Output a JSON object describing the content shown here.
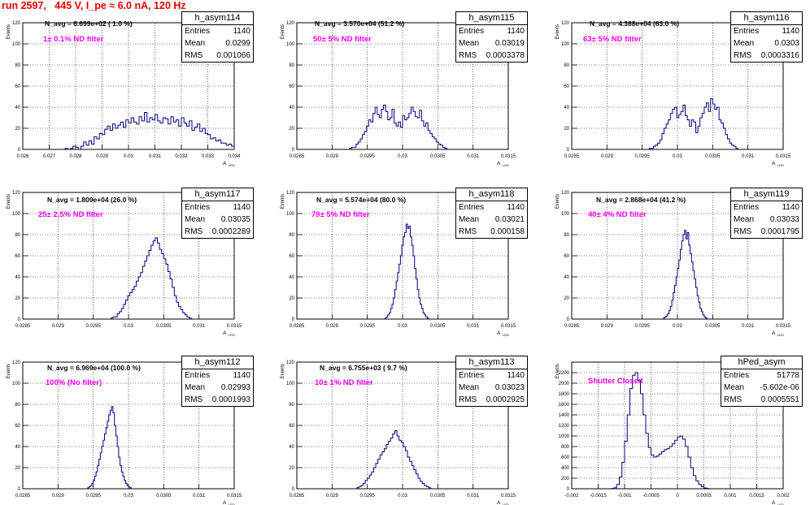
{
  "run_title": "run 2597,   445 V, I_pe ≈ 6.0 nA, 120 Hz",
  "y_axis_label": "Events",
  "x_axis_label": "A",
  "x_axis_sub": "LED",
  "stat_labels": {
    "entries": "Entries",
    "mean": "Mean",
    "rms": "RMS"
  },
  "line_color": "#000080",
  "filter_text_color": "#ff00ff",
  "chart_data": [
    {
      "type": "histogram",
      "name": "h_asym114",
      "navg": "N_avg = 6.699e+02 ( 1.0 %)",
      "filter": "1± 0.1% ND filter",
      "entries": "1140",
      "mean": "0.0299",
      "rms": "0.001066",
      "xlim": [
        0.026,
        0.034
      ],
      "ylim": [
        0,
        120
      ],
      "xticks": [
        "0.026",
        "0.027",
        "0.028",
        "0.029",
        "0.03",
        "0.031",
        "0.032",
        "0.033",
        "0.034"
      ],
      "yticks": [
        "0",
        "20",
        "40",
        "60",
        "80",
        "100",
        "120"
      ],
      "x_start": 0.0276,
      "bin_width": 0.0001,
      "values": [
        1,
        0,
        1,
        3,
        2,
        0,
        3,
        7,
        4,
        8,
        5,
        12,
        10,
        15,
        14,
        19,
        22,
        18,
        24,
        20,
        23,
        26,
        21,
        28,
        25,
        30,
        26,
        24,
        31,
        27,
        35,
        26,
        30,
        28,
        33,
        27,
        25,
        30,
        29,
        24,
        31,
        26,
        28,
        22,
        30,
        25,
        22,
        27,
        18,
        21,
        24,
        17,
        20,
        15,
        14,
        10,
        11,
        8,
        9,
        6,
        6,
        4,
        5,
        3,
        2,
        2,
        1,
        1
      ]
    },
    {
      "type": "histogram",
      "name": "h_asym115",
      "navg": "N_avg = 3.570e+04 (51.2 %)",
      "filter": "50± 5% ND filter",
      "entries": "1140",
      "mean": "0.03019",
      "rms": "0.0003378",
      "xlim": [
        0.0285,
        0.0315
      ],
      "ylim": [
        0,
        120
      ],
      "xticks": [
        "0.0285",
        "0.029",
        "0.0295",
        "0.03",
        "0.0305",
        "0.031",
        "0.0315"
      ],
      "yticks": [
        "0",
        "20",
        "40",
        "60",
        "80",
        "100",
        "120"
      ],
      "x_start": 0.02925,
      "bin_width": 3e-05,
      "values": [
        1,
        2,
        2,
        5,
        7,
        10,
        14,
        17,
        22,
        28,
        26,
        34,
        40,
        33,
        30,
        38,
        42,
        36,
        28,
        30,
        38,
        25,
        22,
        26,
        21,
        32,
        28,
        30,
        34,
        40,
        36,
        31,
        30,
        37,
        27,
        22,
        25,
        18,
        15,
        12,
        10,
        7,
        5,
        4,
        2,
        1
      ]
    },
    {
      "type": "histogram",
      "name": "h_asym116",
      "navg": "N_avg = 4.388e+04 (63.0 %)",
      "filter": "63± 5% ND filter",
      "entries": "1140",
      "mean": "0.0303",
      "rms": "0.0003316",
      "xlim": [
        0.0285,
        0.0315
      ],
      "ylim": [
        0,
        120
      ],
      "xticks": [
        "0.0285",
        "0.029",
        "0.0295",
        "0.03",
        "0.0305",
        "0.031",
        "0.0315"
      ],
      "yticks": [
        "0",
        "20",
        "40",
        "60",
        "80",
        "100",
        "120"
      ],
      "x_start": 0.0296,
      "bin_width": 3e-05,
      "values": [
        1,
        1,
        3,
        4,
        6,
        9,
        15,
        20,
        24,
        28,
        34,
        38,
        40,
        30,
        33,
        36,
        42,
        32,
        28,
        22,
        28,
        26,
        16,
        22,
        30,
        34,
        40,
        44,
        36,
        48,
        43,
        38,
        40,
        28,
        25,
        20,
        14,
        10,
        6,
        4,
        3,
        1
      ]
    },
    {
      "type": "histogram",
      "name": "h_asym117",
      "navg": "N_avg = 1.809e+04 (26.0 %)",
      "filter": "25± 2.5% ND filter",
      "entries": "1140",
      "mean": "0.03035",
      "rms": "0.0002289",
      "xlim": [
        0.0285,
        0.0315
      ],
      "ylim": [
        0,
        120
      ],
      "xticks": [
        "0.0285",
        "0.029",
        "0.0295",
        "0.03",
        "0.0305",
        "0.031",
        "0.0315"
      ],
      "yticks": [
        "0",
        "20",
        "40",
        "60",
        "80",
        "100",
        "120"
      ],
      "x_start": 0.02975,
      "bin_width": 3e-05,
      "values": [
        1,
        2,
        2,
        5,
        7,
        10,
        14,
        18,
        22,
        25,
        28,
        31,
        36,
        40,
        44,
        50,
        55,
        60,
        65,
        70,
        74,
        77,
        72,
        66,
        62,
        57,
        52,
        45,
        38,
        30,
        22,
        16,
        12,
        9,
        6,
        4,
        2,
        1
      ]
    },
    {
      "type": "histogram",
      "name": "h_asym118",
      "navg": "N_avg = 5.574e+04 (80.0 %)",
      "filter": "79± 5% ND filter",
      "entries": "1140",
      "mean": "0.03021",
      "rms": "0.000158",
      "xlim": [
        0.0285,
        0.0315
      ],
      "ylim": [
        0,
        120
      ],
      "xticks": [
        "0.0285",
        "0.029",
        "0.0295",
        "0.03",
        "0.0305",
        "0.031",
        "0.0315"
      ],
      "yticks": [
        "0",
        "20",
        "40",
        "60",
        "80",
        "100",
        "120"
      ],
      "x_start": 0.02975,
      "bin_width": 2e-05,
      "values": [
        1,
        2,
        4,
        6,
        10,
        14,
        20,
        28,
        36,
        44,
        52,
        60,
        70,
        78,
        82,
        90,
        86,
        88,
        78,
        70,
        60,
        48,
        38,
        28,
        20,
        14,
        10,
        6,
        4,
        2,
        1
      ]
    },
    {
      "type": "histogram",
      "name": "h_asym119",
      "navg": "N_avg = 2.868e+04 (41.2 %)",
      "filter": "40± 4% ND filter",
      "entries": "1140",
      "mean": "0.03033",
      "rms": "0.0001795",
      "xlim": [
        0.0285,
        0.0315
      ],
      "ylim": [
        0,
        120
      ],
      "xticks": [
        "0.0285",
        "0.029",
        "0.0295",
        "0.03",
        "0.0305",
        "0.031",
        "0.0315"
      ],
      "yticks": [
        "0",
        "20",
        "40",
        "60",
        "80",
        "100",
        "120"
      ],
      "x_start": 0.0298,
      "bin_width": 2e-05,
      "values": [
        1,
        2,
        3,
        5,
        8,
        12,
        18,
        25,
        32,
        40,
        48,
        56,
        66,
        74,
        80,
        84,
        76,
        82,
        70,
        62,
        54,
        46,
        38,
        30,
        22,
        16,
        10,
        7,
        4,
        2,
        1
      ]
    },
    {
      "type": "histogram",
      "name": "h_asym112",
      "navg": "N_avg = 6.969e+04 (100.0 %)",
      "filter": "100% (No filter)",
      "entries": "1140",
      "mean": "0.02993",
      "rms": "0.0001993",
      "xlim": [
        0.0285,
        0.0315
      ],
      "ylim": [
        0,
        120
      ],
      "xticks": [
        "0.0285",
        "0.029",
        "0.0295",
        "0.03",
        "0.0305",
        "0.031",
        "0.0315"
      ],
      "yticks": [
        "0",
        "20",
        "40",
        "60",
        "80",
        "100",
        "120"
      ],
      "x_start": 0.02942,
      "bin_width": 2e-05,
      "values": [
        1,
        2,
        3,
        5,
        8,
        12,
        16,
        22,
        28,
        34,
        40,
        46,
        52,
        58,
        64,
        70,
        74,
        78,
        72,
        60,
        50,
        40,
        30,
        22,
        16,
        12,
        8,
        5,
        3,
        2,
        1
      ]
    },
    {
      "type": "histogram",
      "name": "h_asym113",
      "navg": "N_avg = 6.755e+03 ( 9.7 %)",
      "filter": "10± 1% ND filter",
      "entries": "1140",
      "mean": "0.03023",
      "rms": "0.0002925",
      "xlim": [
        0.0285,
        0.0315
      ],
      "ylim": [
        0,
        120
      ],
      "xticks": [
        "0.0285",
        "0.029",
        "0.0295",
        "0.03",
        "0.0305",
        "0.031",
        "0.0315"
      ],
      "yticks": [
        "0",
        "20",
        "40",
        "60",
        "80",
        "100",
        "120"
      ],
      "x_start": 0.02935,
      "bin_width": 3e-05,
      "values": [
        1,
        2,
        3,
        5,
        8,
        10,
        13,
        16,
        20,
        24,
        28,
        32,
        35,
        38,
        42,
        45,
        48,
        52,
        55,
        50,
        46,
        44,
        40,
        36,
        30,
        26,
        22,
        18,
        14,
        10,
        7,
        5,
        3,
        2,
        1
      ]
    },
    {
      "type": "histogram",
      "name": "hPed_asym",
      "navg": "",
      "filter": "Shutter Closed",
      "entries": "51778",
      "mean": "-5.602e-06",
      "rms": "0.0005551",
      "xlim": [
        -0.002,
        0.002
      ],
      "ylim": [
        0,
        2400
      ],
      "xticks": [
        "-0.002",
        "-0.0015",
        "-0.001",
        "-0.0005",
        "0",
        "0.0005",
        "0.001",
        "0.0015",
        "0.002"
      ],
      "yticks": [
        "0",
        "200",
        "400",
        "600",
        "800",
        "1000",
        "1200",
        "1400",
        "1600",
        "1800",
        "2000",
        "2200"
      ],
      "x_start": -0.00125,
      "bin_width": 5e-05,
      "values": [
        5,
        20,
        80,
        220,
        500,
        900,
        1400,
        1900,
        2150,
        2200,
        2050,
        1800,
        1400,
        1050,
        780,
        640,
        600,
        620,
        660,
        700,
        740,
        760,
        800,
        850,
        920,
        980,
        1000,
        940,
        800,
        600,
        400,
        250,
        150,
        80,
        40,
        15,
        5
      ]
    }
  ]
}
